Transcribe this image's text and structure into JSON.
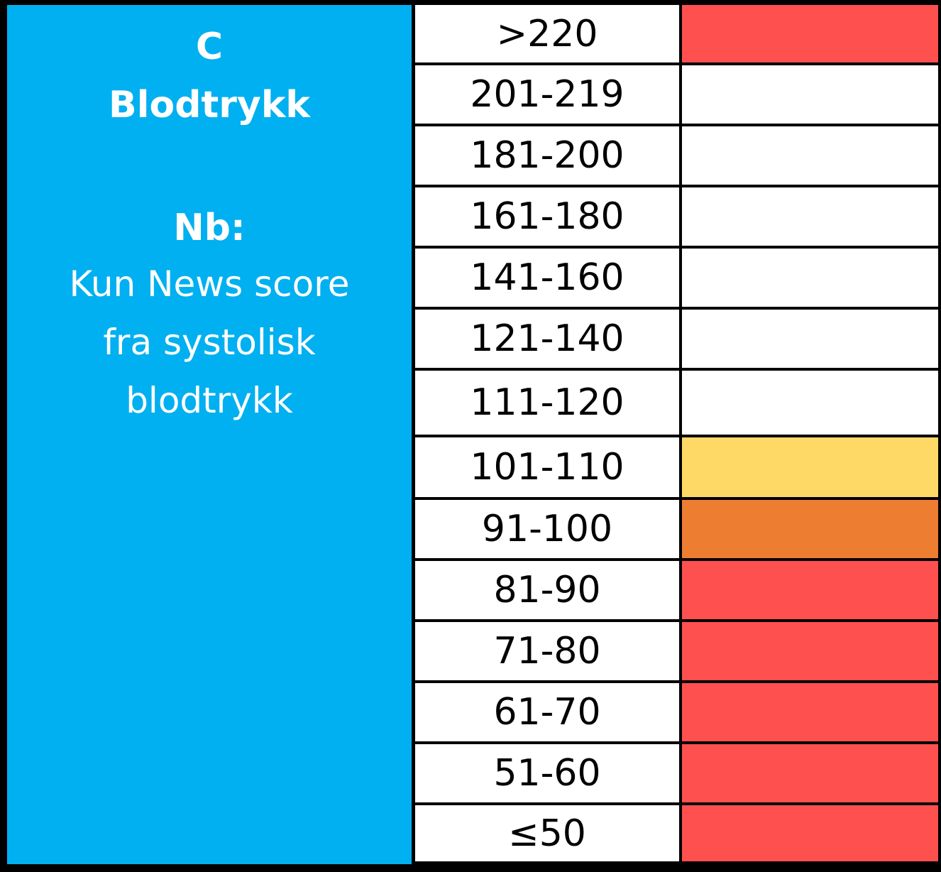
{
  "side_panel": {
    "heading_letter": "C",
    "heading_title": "Blodtrykk",
    "note_label": "Nb:",
    "note_lines": [
      "Kun News score",
      "fra systolisk",
      "blodtrykk"
    ],
    "color": "#00b0f0"
  },
  "rows": [
    {
      "range": ">220",
      "color": "#ff5050"
    },
    {
      "range": "201-219",
      "color": "#ffffff"
    },
    {
      "range": "181-200",
      "color": "#ffffff"
    },
    {
      "range": "161-180",
      "color": "#ffffff"
    },
    {
      "range": "141-160",
      "color": "#ffffff"
    },
    {
      "range": "121-140",
      "color": "#ffffff"
    },
    {
      "range": "111-120",
      "color": "#ffffff"
    },
    {
      "range": "101-110",
      "color": "#ffd966"
    },
    {
      "range": "91-100",
      "color": "#ed7d31"
    },
    {
      "range": "81-90",
      "color": "#ff5050"
    },
    {
      "range": "71-80",
      "color": "#ff5050"
    },
    {
      "range": "61-70",
      "color": "#ff5050"
    },
    {
      "range": "51-60",
      "color": "#ff5050"
    },
    {
      "range": "≤50",
      "color": "#ff5050"
    }
  ]
}
